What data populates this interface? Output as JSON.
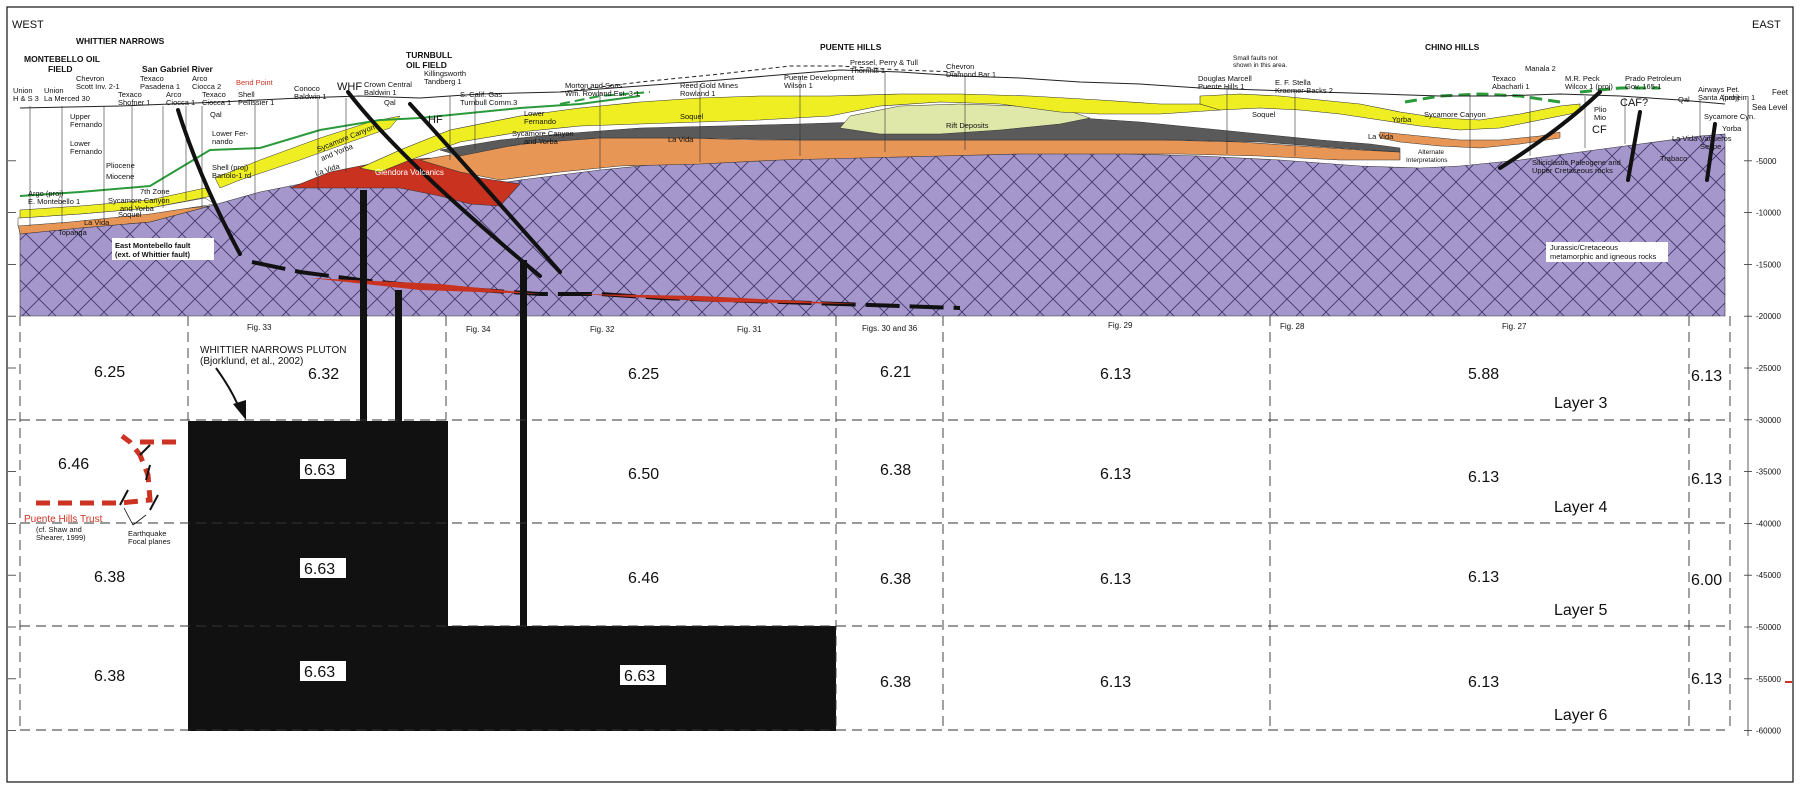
{
  "header": {
    "west": "WEST",
    "east": "EAST",
    "regions": [
      {
        "id": "whittier-narrows",
        "text": "WHITTIER NARROWS"
      },
      {
        "id": "turnbull",
        "text": "TURNBULL"
      },
      {
        "id": "turnbull2",
        "text": "OIL FIELD"
      },
      {
        "id": "montebello",
        "text": "MONTEBELLO OIL"
      },
      {
        "id": "montebello2",
        "text": "FIELD"
      },
      {
        "id": "san-gabriel",
        "text": "San Gabriel River"
      },
      {
        "id": "puente-hills",
        "text": "PUENTE HILLS"
      },
      {
        "id": "chino-hills",
        "text": "CHINO HILLS"
      }
    ],
    "bend_point": "Bend Point",
    "small_faults_note": [
      "Small faults not",
      "shown in this area."
    ]
  },
  "wells": [
    [
      "Union",
      "H & S 3"
    ],
    [
      "Union",
      "La Merced 30"
    ],
    [
      "Chevron",
      "Scott Inv. 2-1"
    ],
    [
      "Texaco",
      "Shofner 1"
    ],
    [
      "Texaco",
      "Pasadena 1"
    ],
    [
      "Arco",
      "Ciocca 1"
    ],
    [
      "Arco",
      "Ciocca 2"
    ],
    [
      "Texaco",
      "Ciocca 1"
    ],
    [
      "Shell",
      "Pellissier 1"
    ],
    [
      "Conoco",
      "Baldwin 1"
    ],
    [
      "Crown Central",
      "Baldwin 1"
    ],
    [
      "Killingsworth",
      "Tandberg 1"
    ],
    [
      "S. Calif. Gas",
      "Turnbull Comm.3"
    ],
    [
      "Morton and Sons",
      "Wm. Rowland Est. 3-1"
    ],
    [
      "Reed Gold Mines",
      "Rowland 1"
    ],
    [
      "Puente Development",
      "Wilson 1"
    ],
    [
      "Pressel, Perry & Tull",
      "Thornhill 1"
    ],
    [
      "Chevron",
      "Diamond Bar 1"
    ],
    [
      "Douglas Marcell",
      "Puente Hills 1"
    ],
    [
      "E. F. Stella",
      "Kraemer-Backs 2"
    ],
    [
      "Texaco",
      "Abacharli 1"
    ],
    [
      "Manala 2",
      ""
    ],
    [
      "M.R. Peck",
      "Wilcox 1 (proj)"
    ],
    [
      "Prado Petroleum",
      "Gov. 165-1"
    ],
    [
      "Airways Pet.",
      "Santa Anaheim 1"
    ],
    [
      "(proj)",
      ""
    ]
  ],
  "units": {
    "upper_fernando": [
      "Upper",
      "Fernando"
    ],
    "lower_fernando": [
      "Lower",
      "Fernando"
    ],
    "lower_fernando2": [
      "Lower Fer-",
      "nando"
    ],
    "lower_fernando3": [
      "Lower",
      "Fernando"
    ],
    "pliocene": "Pliocene",
    "miocene": "Miocene",
    "seventh_zone": "7th Zone",
    "syc_yorba_left": [
      "Sycamore Canyon",
      "and Yorba"
    ],
    "syc_yorba_mid": [
      "Sycamore Canyon",
      "and Yorba"
    ],
    "syc_yorba_center": [
      "Sycamore Canyon",
      "and Yorba"
    ],
    "sycamore_canyon_right": "Sycamore Canyon",
    "argo": [
      "Argo (proj)",
      "E. Montebello 1"
    ],
    "shell_proj": [
      "Shell (proj)",
      "Bartolo-1 rd"
    ],
    "la_vida": "La Vida",
    "la_vida2": "La Vida",
    "la_vida3": "La Vida",
    "la_vida4": "La Vida",
    "la_vida5": "La Vida",
    "soquel": "Soquel",
    "soquel2": "Soquel",
    "soquel3": "Soquel",
    "topanga": "Topanga",
    "qal": "Qal",
    "qal2": "Qal",
    "qal3": "Qal",
    "glendora": "Glendora Volcanics",
    "rift": "Rift Deposits",
    "yorba": "Yorba",
    "yorba2": "Yorba",
    "trabaco": "Trabaco",
    "vaqueros": [
      "Vaqueros",
      "Sespe"
    ],
    "syc_cyn_right": "Sycamore Cyn.",
    "plio_mio": [
      "Plio",
      "Mio"
    ],
    "alternate": [
      "Alternate",
      "Interpretations"
    ],
    "siliciclastic": [
      "Siliciclastic Paleogene and",
      "Upper Cretaceous rocks"
    ],
    "basement": [
      "Jurassic/Cretaceous",
      "metamorphic and igneous rocks"
    ]
  },
  "faults": {
    "whf": "WHF",
    "hf": "HF",
    "cf": "CF",
    "caf": "CAF?",
    "east_montebello": [
      "East Montebello fault",
      "(ext. of Whittier fault)"
    ],
    "puente_hills_thrust": "Puente Hills Trust",
    "puente_hills_ref": [
      "(cf. Shaw and",
      "Shearer, 1999)"
    ],
    "earthquake": [
      "Earthquake",
      "Focal planes"
    ]
  },
  "pluton": {
    "name": "WHITTIER NARROWS PLUTON",
    "ref": "(Bjorklund, et al., 2002)"
  },
  "figs": [
    "Fig. 33",
    "Fig. 34",
    "Fig. 32",
    "Fig. 31",
    "Figs. 30 and 36",
    "Fig. 29",
    "Fig. 28",
    "Fig. 27"
  ],
  "depth_axis": {
    "unit": "Feet",
    "sea_level": "Sea Level",
    "ticks": [
      "-5000",
      "-10000",
      "-15000",
      "-20000",
      "-25000",
      "-30000",
      "-35000",
      "-40000",
      "-45000",
      "-50000",
      "-55000",
      "-60000"
    ]
  },
  "layers": [
    "Layer 3",
    "Layer 4",
    "Layer 5",
    "Layer 6"
  ],
  "velocities": {
    "layer3": [
      "6.25",
      "6.32",
      "6.25",
      "6.21",
      "6.13",
      "5.88",
      "6.13"
    ],
    "layer4": [
      "6.46",
      "6.63",
      "6.50",
      "6.38",
      "6.13",
      "6.13",
      "6.13"
    ],
    "layer5": [
      "6.38",
      "6.63",
      "6.46",
      "6.38",
      "6.13",
      "6.13",
      "6.00"
    ],
    "layer6": [
      "6.38",
      "6.63",
      "6.63",
      "6.38",
      "6.13",
      "6.13",
      "6.13"
    ]
  },
  "colors": {
    "basement": "#9f93c7",
    "glendora": "#c8321e",
    "soquel": "#eeee22",
    "la_vida": "#e89656",
    "topanga": "#e89656",
    "green_marker": "#2a9a3a",
    "rift": "#dfe8a8",
    "dark_gray": "#555555",
    "pluton": "#111111",
    "thrust": "#cc3322"
  }
}
